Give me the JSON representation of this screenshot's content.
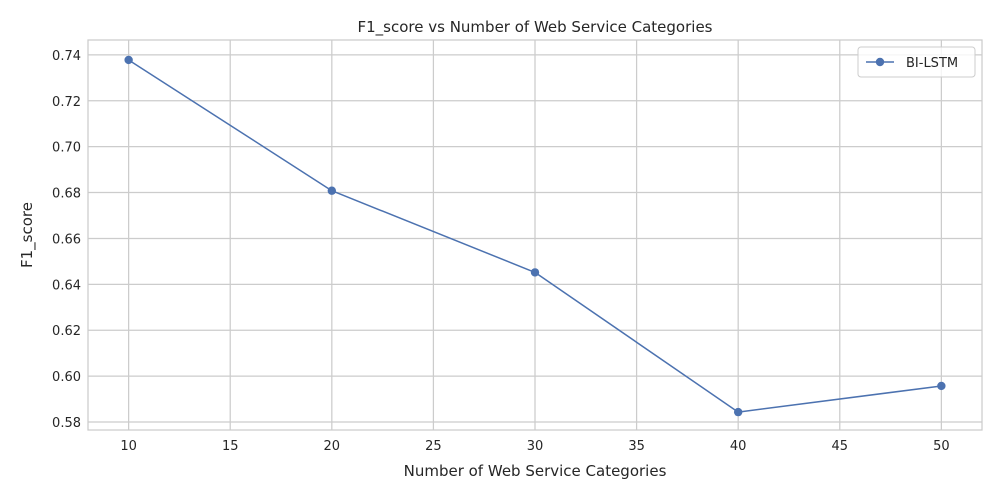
{
  "chart_data": {
    "type": "line",
    "title": "F1_score vs Number of Web Service Categories",
    "xlabel": "Number of  Web Service Categories",
    "ylabel": "F1_score",
    "x": [
      10,
      20,
      30,
      40,
      50
    ],
    "series": [
      {
        "name": "BI-LSTM",
        "values": [
          0.7378,
          0.6808,
          0.6452,
          0.5843,
          0.5957
        ],
        "color": "#4c72b0",
        "marker": "circle"
      }
    ],
    "xlim": [
      8,
      52
    ],
    "ylim": [
      0.5765,
      0.7465
    ],
    "xticks": [
      10,
      15,
      20,
      25,
      30,
      35,
      40,
      45,
      50
    ],
    "xtick_labels": [
      "10",
      "15",
      "20",
      "25",
      "30",
      "35",
      "40",
      "45",
      "50"
    ],
    "yticks": [
      0.58,
      0.6,
      0.62,
      0.64,
      0.66,
      0.68,
      0.7,
      0.72,
      0.74
    ],
    "ytick_labels": [
      "0.58",
      "0.60",
      "0.62",
      "0.64",
      "0.66",
      "0.68",
      "0.70",
      "0.72",
      "0.74"
    ],
    "grid": true,
    "legend_position": "top-right",
    "grid_color": "#cccccc",
    "spine_color": "#cccccc",
    "text_color": "#262626"
  }
}
